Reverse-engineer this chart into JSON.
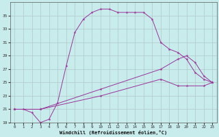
{
  "xlabel": "Windchill (Refroidissement éolien,°C)",
  "bg_color": "#c8ecec",
  "line_color": "#993399",
  "grid_color": "#b0c8c8",
  "line1_x": [
    0,
    1,
    2,
    3,
    4,
    5,
    6,
    7,
    8,
    9,
    10,
    11,
    12,
    13,
    14,
    15,
    16,
    17,
    18,
    19,
    20,
    21,
    22,
    23
  ],
  "line1_y": [
    21,
    21,
    20.5,
    19,
    19.5,
    22,
    27.5,
    32.5,
    34.5,
    35.5,
    36,
    36,
    35.5,
    35.5,
    35.5,
    35.5,
    34.5,
    31,
    30,
    29.5,
    28.5,
    26.5,
    25.5,
    25
  ],
  "line2_x": [
    0,
    3,
    10,
    17,
    19,
    20,
    21,
    22,
    23
  ],
  "line2_y": [
    21,
    21,
    24,
    27,
    28.5,
    29,
    28,
    26,
    25
  ],
  "line3_x": [
    0,
    3,
    10,
    17,
    19,
    20,
    22,
    23
  ],
  "line3_y": [
    21,
    21,
    23,
    25.5,
    24.5,
    24.5,
    24.5,
    25
  ],
  "ylim": [
    19,
    37
  ],
  "xlim": [
    -0.5,
    23.5
  ],
  "yticks": [
    19,
    21,
    23,
    25,
    27,
    29,
    31,
    33,
    35
  ],
  "xticks": [
    0,
    1,
    2,
    3,
    4,
    5,
    6,
    7,
    8,
    9,
    10,
    11,
    12,
    13,
    14,
    15,
    16,
    17,
    18,
    19,
    20,
    21,
    22,
    23
  ]
}
